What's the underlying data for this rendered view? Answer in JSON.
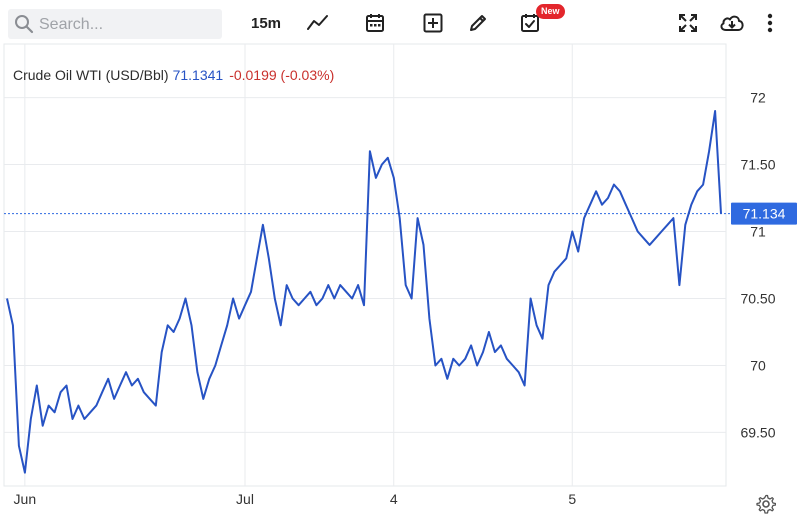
{
  "toolbar": {
    "search_placeholder": "Search...",
    "interval": "15m",
    "new_badge": "New",
    "icons": [
      "search-icon",
      "chart-style-icon",
      "calendar-icon",
      "add-indicator-icon",
      "draw-icon",
      "events-icon",
      "fullscreen-icon",
      "download-icon",
      "more-icon"
    ]
  },
  "legend": {
    "symbol": "Crude Oil WTI (USD/Bbl)",
    "last": "71.1341",
    "change": "-0.0199 (-0.03%)"
  },
  "colors": {
    "line": "#2753c4",
    "change": "#c9302c",
    "price_tag": "#2f6ae0"
  },
  "chart_data": {
    "type": "line",
    "y_ticks": [
      69.5,
      70,
      70.5,
      71,
      71.5,
      72
    ],
    "y_tick_labels": [
      "69.50",
      "70",
      "70.50",
      "71",
      "71.50",
      "72"
    ],
    "ylim": [
      69.1,
      72.4
    ],
    "x_ticks": [
      {
        "label": "Jun",
        "index": 3
      },
      {
        "label": "Jul",
        "index": 40
      },
      {
        "label": "4",
        "index": 65
      },
      {
        "label": "5",
        "index": 95
      }
    ],
    "x_count": 121,
    "last_price_label": "71.134",
    "last_price": 71.134,
    "grid": true,
    "series": [
      {
        "values": [
          70.5,
          70.3,
          69.4,
          69.2,
          69.6,
          69.85,
          69.55,
          69.7,
          69.65,
          69.8,
          69.85,
          69.6,
          69.7,
          69.6,
          69.65,
          69.7,
          69.8,
          69.9,
          69.75,
          69.85,
          69.95,
          69.85,
          69.9,
          69.8,
          69.75,
          69.7,
          70.1,
          70.3,
          70.25,
          70.35,
          70.5,
          70.3,
          69.95,
          69.75,
          69.9,
          70.0,
          70.15,
          70.3,
          70.5,
          70.35,
          70.45,
          70.55,
          70.8,
          71.05,
          70.8,
          70.5,
          70.3,
          70.6,
          70.5,
          70.45,
          70.5,
          70.55,
          70.45,
          70.5,
          70.6,
          70.5,
          70.6,
          70.55,
          70.5,
          70.6,
          70.45,
          71.6,
          71.4,
          71.5,
          71.55,
          71.4,
          71.1,
          70.6,
          70.5,
          71.1,
          70.9,
          70.35,
          70.0,
          70.05,
          69.9,
          70.05,
          70.0,
          70.05,
          70.15,
          70.0,
          70.1,
          70.25,
          70.1,
          70.15,
          70.05,
          70.0,
          69.95,
          69.85,
          70.5,
          70.3,
          70.2,
          70.6,
          70.7,
          70.75,
          70.8,
          71.0,
          70.85,
          71.1,
          71.2,
          71.3,
          71.2,
          71.25,
          71.35,
          71.3,
          71.2,
          71.1,
          71.0,
          70.95,
          70.9,
          70.95,
          71.0,
          71.05,
          71.1,
          70.6,
          71.05,
          71.2,
          71.3,
          71.35,
          71.6,
          71.9,
          71.134
        ]
      }
    ]
  }
}
